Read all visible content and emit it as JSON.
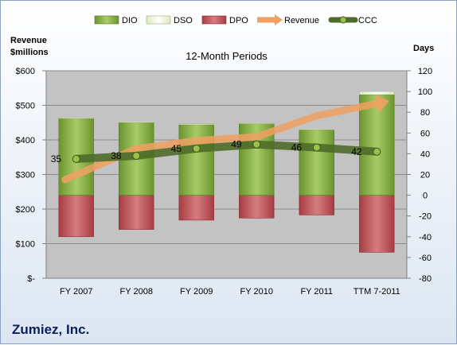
{
  "chart_data": {
    "type": "bar",
    "title": "12-Month Periods",
    "company": "Zumiez, Inc.",
    "left_axis_label": [
      "Revenue",
      "$millions"
    ],
    "right_axis_label": "Days",
    "categories": [
      "FY 2007",
      "FY 2008",
      "FY 2009",
      "FY 2010",
      "FY 2011",
      "TTM 7-2011"
    ],
    "left_axis": {
      "min": 0,
      "max": 600,
      "step": 100,
      "tick_labels": [
        "$-",
        "$100",
        "$200",
        "$300",
        "$400",
        "$500",
        "$600"
      ]
    },
    "right_axis": {
      "min": -80,
      "max": 120,
      "step": 20,
      "tick_labels": [
        "-80",
        "-60",
        "-40",
        "-20",
        "0",
        "20",
        "40",
        "60",
        "80",
        "100",
        "120"
      ]
    },
    "legend": {
      "placement": "top",
      "items": [
        "DIO",
        "DSO",
        "DPO",
        "Revenue",
        "CCC"
      ]
    },
    "series": [
      {
        "name": "DIO",
        "axis": "right",
        "values": [
          74,
          70,
          68,
          69,
          63,
          97
        ]
      },
      {
        "name": "DSO",
        "axis": "right",
        "values": [
          0.8,
          0.8,
          0.8,
          0.8,
          0.8,
          3
        ]
      },
      {
        "name": "DPO",
        "axis": "right",
        "values": [
          -40,
          -33,
          -24,
          -22,
          -19,
          -55
        ]
      },
      {
        "name": "Revenue",
        "axis": "left",
        "values": [
          285,
          375,
          398,
          409,
          470,
          505
        ]
      },
      {
        "name": "CCC",
        "axis": "right",
        "values": [
          35,
          38,
          45,
          49,
          46,
          42
        ]
      }
    ],
    "ccc_labels": [
      "35",
      "38",
      "45",
      "49",
      "46",
      "42"
    ],
    "grid": true,
    "colors": {
      "dio": "#7aa33a",
      "dso": "#f0f5dc",
      "dpo": "#b84a4f",
      "revenue": "#f0a060",
      "ccc": "#4f6b2a",
      "plot_bg": "#c3c3c3"
    }
  }
}
